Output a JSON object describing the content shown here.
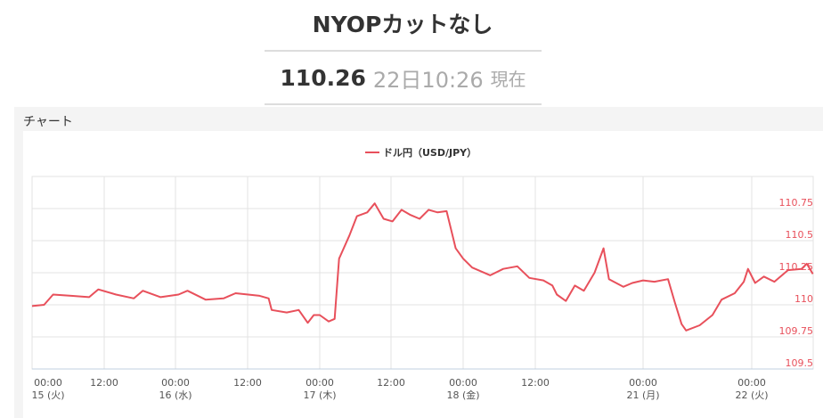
{
  "header": {
    "title": "NYOPカットなし",
    "price": "110.26",
    "timestamp": "22日10:26",
    "now_label": "現在"
  },
  "panel": {
    "title": "チャート"
  },
  "chart_data": {
    "type": "line",
    "title": "",
    "legend": {
      "entries": [
        "ドル円（USD/JPY）"
      ],
      "placement": "top-center"
    },
    "series": [
      {
        "name": "ドル円（USD/JPY）",
        "color": "#e8505b",
        "points": [
          [
            "15 00:00",
            109.99
          ],
          [
            "15 02:00",
            110.0
          ],
          [
            "15 03:30",
            110.08
          ],
          [
            "15 06:30",
            110.07
          ],
          [
            "15 09:30",
            110.06
          ],
          [
            "15 11:00",
            110.12
          ],
          [
            "15 14:00",
            110.08
          ],
          [
            "15 17:00",
            110.05
          ],
          [
            "15 18:30",
            110.11
          ],
          [
            "15 21:30",
            110.06
          ],
          [
            "16 00:30",
            110.08
          ],
          [
            "16 02:00",
            110.11
          ],
          [
            "16 05:00",
            110.04
          ],
          [
            "16 08:00",
            110.05
          ],
          [
            "16 10:00",
            110.09
          ],
          [
            "16 14:00",
            110.07
          ],
          [
            "16 15:30",
            110.05
          ],
          [
            "16 16:00",
            109.96
          ],
          [
            "16 18:30",
            109.94
          ],
          [
            "16 20:30",
            109.96
          ],
          [
            "16 22:00",
            109.86
          ],
          [
            "16 23:00",
            109.92
          ],
          [
            "17 00:00",
            109.92
          ],
          [
            "17 01:30",
            109.87
          ],
          [
            "17 02:30",
            109.89
          ],
          [
            "17 03:15",
            110.36
          ],
          [
            "17 05:00",
            110.54
          ],
          [
            "17 06:15",
            110.69
          ],
          [
            "17 08:00",
            110.72
          ],
          [
            "17 09:15",
            110.79
          ],
          [
            "17 10:45",
            110.67
          ],
          [
            "17 12:15",
            110.65
          ],
          [
            "17 13:45",
            110.74
          ],
          [
            "17 15:15",
            110.7
          ],
          [
            "17 16:45",
            110.67
          ],
          [
            "17 18:15",
            110.74
          ],
          [
            "17 19:45",
            110.72
          ],
          [
            "17 21:15",
            110.73
          ],
          [
            "17 22:45",
            110.44
          ],
          [
            "18 00:00",
            110.36
          ],
          [
            "18 01:30",
            110.29
          ],
          [
            "18 04:30",
            110.23
          ],
          [
            "18 06:40",
            110.28
          ],
          [
            "18 09:00",
            110.3
          ],
          [
            "18 11:00",
            110.21
          ],
          [
            "18 16:30",
            110.19
          ],
          [
            "18 21:30",
            110.15
          ],
          [
            "19 00:00",
            110.08
          ],
          [
            "19 05:00",
            110.03
          ],
          [
            "19 10:00",
            110.15
          ],
          [
            "19 15:00",
            110.11
          ],
          [
            "19 21:00",
            110.25
          ],
          [
            "20 02:00",
            110.44
          ],
          [
            "20 05:00",
            110.2
          ],
          [
            "20 13:00",
            110.14
          ],
          [
            "20 18:00",
            110.17
          ],
          [
            "21 00:00",
            110.19
          ],
          [
            "21 02:30",
            110.18
          ],
          [
            "21 05:30",
            110.2
          ],
          [
            "21 07:00",
            110.02
          ],
          [
            "21 08:30",
            109.85
          ],
          [
            "21 09:30",
            109.8
          ],
          [
            "21 12:30",
            109.84
          ],
          [
            "21 15:20",
            109.92
          ],
          [
            "21 17:20",
            110.04
          ],
          [
            "21 20:15",
            110.09
          ],
          [
            "21 22:15",
            110.18
          ],
          [
            "21 23:10",
            110.28
          ],
          [
            "22 00:45",
            110.17
          ],
          [
            "22 02:40",
            110.22
          ],
          [
            "22 05:00",
            110.18
          ],
          [
            "22 08:00",
            110.27
          ],
          [
            "22 11:00",
            110.28
          ],
          [
            "22 12:10",
            110.32
          ],
          [
            "22 13:30",
            110.24
          ]
        ]
      }
    ],
    "x_ticks": [
      {
        "t": "15 00:00",
        "time": "00:00",
        "date": "15 (火)"
      },
      {
        "t": "15 12:00",
        "time": "12:00",
        "date": ""
      },
      {
        "t": "16 00:00",
        "time": "00:00",
        "date": "16 (水)"
      },
      {
        "t": "16 12:00",
        "time": "12:00",
        "date": ""
      },
      {
        "t": "17 00:00",
        "time": "00:00",
        "date": "17 (木)"
      },
      {
        "t": "17 12:00",
        "time": "12:00",
        "date": ""
      },
      {
        "t": "18 00:00",
        "time": "00:00",
        "date": "18 (金)"
      },
      {
        "t": "18 12:00",
        "time": "12:00",
        "date": ""
      },
      {
        "t": "21 00:00",
        "time": "00:00",
        "date": "21 (月)"
      },
      {
        "t": "22 00:00",
        "time": "00:00",
        "date": "22 (火)"
      }
    ],
    "y_ticks": [
      "109.5",
      "109.75",
      "110",
      "110.25",
      "110.5",
      "110.75"
    ],
    "ylim": [
      109.5,
      111.0
    ],
    "y_axis_position": "right",
    "grid": true
  }
}
